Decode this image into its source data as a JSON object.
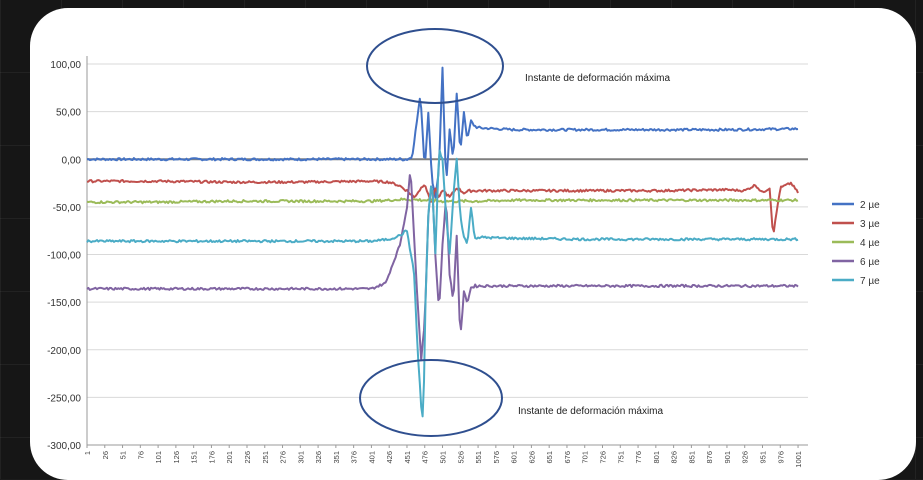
{
  "chart_data": {
    "type": "line",
    "title": "",
    "xlabel": "",
    "ylabel": "",
    "ylim": [
      -300,
      100
    ],
    "y_ticks": [
      "100,00",
      "50,00",
      "0,00",
      "-50,00",
      "-100,00",
      "-150,00",
      "-200,00",
      "-250,00",
      "-300,00"
    ],
    "x_ticks": [
      "1",
      "26",
      "51",
      "76",
      "101",
      "126",
      "151",
      "176",
      "201",
      "226",
      "251",
      "276",
      "301",
      "326",
      "351",
      "376",
      "401",
      "426",
      "451",
      "476",
      "501",
      "526",
      "551",
      "576",
      "601",
      "626",
      "651",
      "676",
      "701",
      "726",
      "751",
      "776",
      "801",
      "826",
      "851",
      "876",
      "901",
      "926",
      "951",
      "976",
      "1001"
    ],
    "grid": "horizontal",
    "legend_position": "right",
    "annotations": [
      "Instante de deformación máxima",
      "Instante de deformación máxima"
    ],
    "series": [
      {
        "name": "2 µe",
        "color": "#4472C4",
        "x": [
          1,
          426,
          451,
          458,
          465,
          470,
          476,
          481,
          486,
          491,
          496,
          501,
          506,
          511,
          516,
          521,
          526,
          531,
          536,
          541,
          546,
          551,
          601,
          701,
          801,
          901,
          1001
        ],
        "values": [
          0,
          0,
          0,
          2,
          40,
          68,
          -10,
          50,
          -20,
          -40,
          -10,
          97,
          -30,
          30,
          0,
          70,
          5,
          50,
          20,
          40,
          35,
          33,
          31,
          31,
          31,
          31,
          32
        ]
      },
      {
        "name": "3 µe",
        "color": "#C0504D",
        "x": [
          1,
          101,
          201,
          301,
          401,
          426,
          441,
          451,
          461,
          471,
          476,
          481,
          486,
          491,
          496,
          501,
          511,
          521,
          531,
          541,
          551,
          601,
          701,
          801,
          901,
          926,
          941,
          951,
          961,
          966,
          976,
          991,
          1001
        ],
        "values": [
          -23,
          -23,
          -24,
          -24,
          -23,
          -24,
          -28,
          -33,
          -40,
          -30,
          -25,
          -38,
          -45,
          -30,
          -42,
          -32,
          -40,
          -30,
          -35,
          -33,
          -33,
          -33,
          -33,
          -33,
          -32,
          -33,
          -27,
          -35,
          -30,
          -80,
          -30,
          -25,
          -35
        ]
      },
      {
        "name": "4 µe",
        "color": "#9BBB59",
        "x": [
          1,
          101,
          201,
          301,
          401,
          451,
          476,
          501,
          551,
          601,
          701,
          801,
          901,
          1001
        ],
        "values": [
          -45,
          -45,
          -44,
          -44,
          -44,
          -42,
          -43,
          -44,
          -44,
          -43,
          -43,
          -43,
          -43,
          -43
        ]
      },
      {
        "name": "6 µe",
        "color": "#8064A2",
        "x": [
          1,
          101,
          201,
          301,
          351,
          401,
          421,
          431,
          441,
          451,
          456,
          461,
          466,
          471,
          476,
          481,
          486,
          491,
          496,
          501,
          506,
          511,
          516,
          521,
          526,
          531,
          536,
          541,
          546,
          551,
          601,
          701,
          801,
          901,
          1001
        ],
        "values": [
          -136,
          -136,
          -136,
          -136,
          -136,
          -136,
          -130,
          -110,
          -90,
          -50,
          -10,
          -80,
          -150,
          -210,
          -170,
          -60,
          -20,
          -100,
          -160,
          -90,
          -40,
          -120,
          -150,
          -80,
          -190,
          -140,
          -150,
          -135,
          -133,
          -133,
          -133,
          -133,
          -133,
          -133,
          -133
        ]
      },
      {
        "name": "7 µe",
        "color": "#4BACC6",
        "x": [
          1,
          101,
          201,
          301,
          401,
          426,
          441,
          451,
          461,
          466,
          471,
          474,
          477,
          481,
          486,
          491,
          496,
          501,
          506,
          511,
          516,
          521,
          526,
          531,
          536,
          541,
          546,
          551,
          601,
          701,
          801,
          901,
          1001
        ],
        "values": [
          -86,
          -86,
          -86,
          -86,
          -86,
          -84,
          -80,
          -75,
          -120,
          -200,
          -260,
          -275,
          -150,
          -60,
          -20,
          -100,
          10,
          0,
          -60,
          -100,
          -40,
          0,
          -60,
          -80,
          -90,
          -50,
          -82,
          -82,
          -83,
          -84,
          -84,
          -84,
          -84
        ]
      }
    ]
  }
}
